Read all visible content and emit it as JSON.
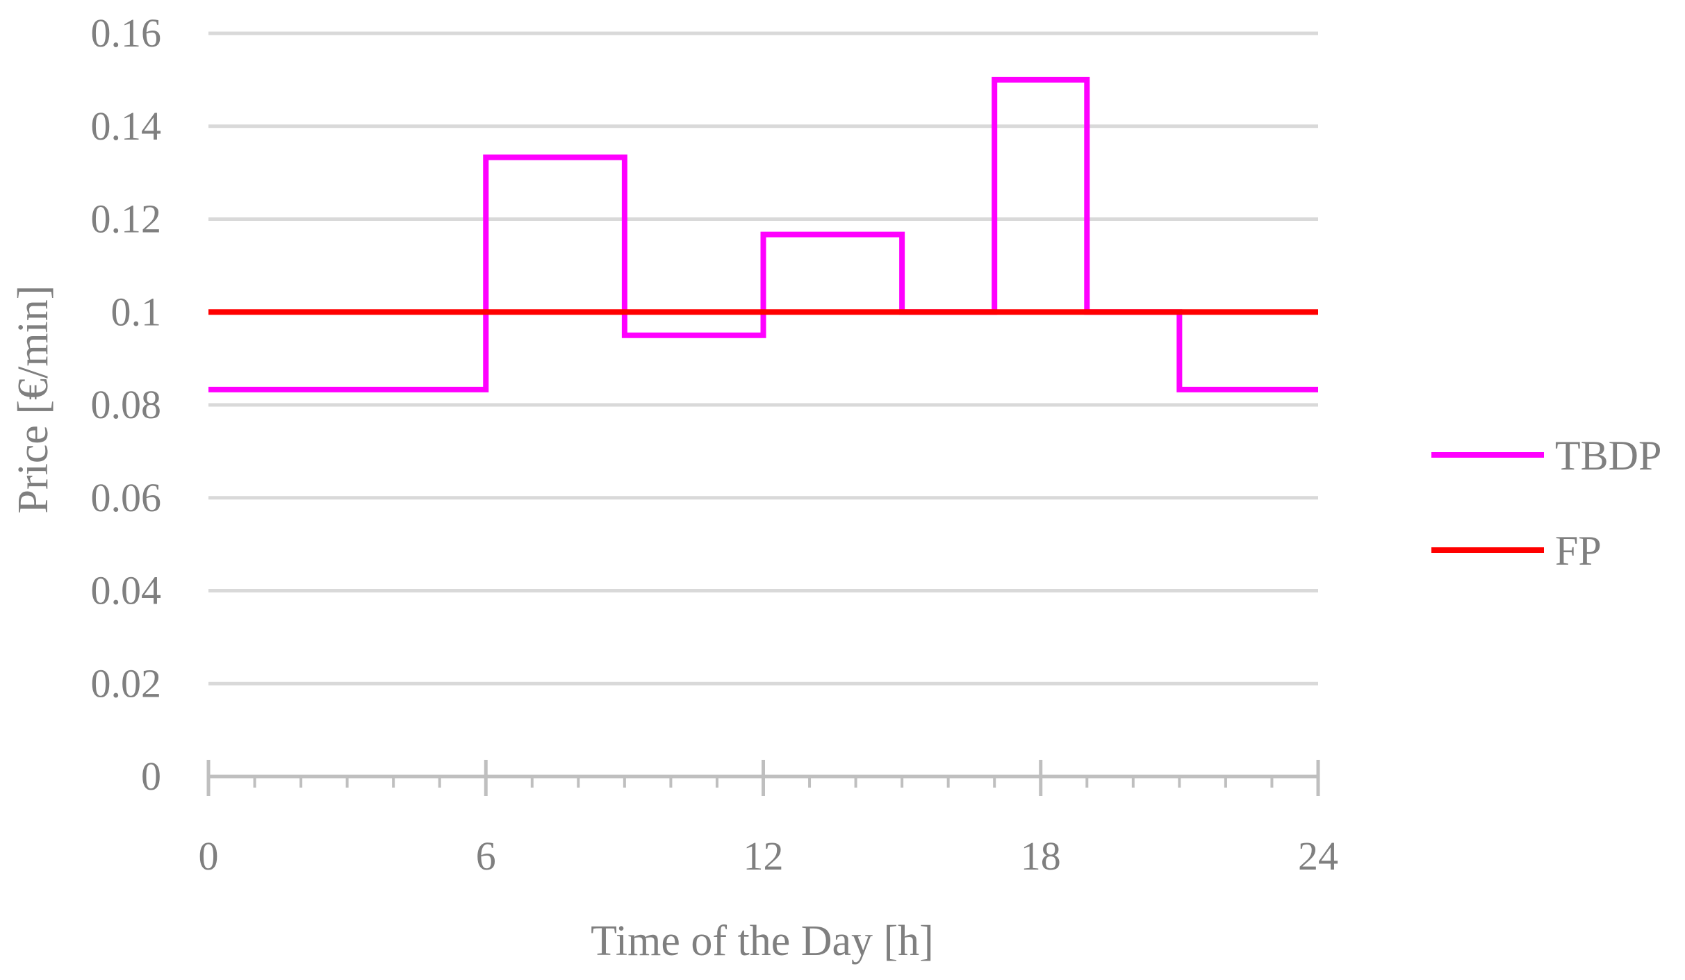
{
  "chart_data": {
    "type": "line",
    "step": true,
    "xlabel": "Time of the Day [h]",
    "ylabel": "Price [€/min]",
    "xlim": [
      0,
      24
    ],
    "ylim": [
      0,
      0.16
    ],
    "x_ticks": [
      "0",
      "6",
      "12",
      "18",
      "24"
    ],
    "x_minor_step": 1,
    "y_ticks": [
      "0",
      "0.02",
      "0.04",
      "0.06",
      "0.08",
      "0.1",
      "0.12",
      "0.14",
      "0.16"
    ],
    "grid": true,
    "legend_position": "right",
    "series": [
      {
        "name": "TBDP",
        "color": "#ff00ff",
        "segments": [
          {
            "x0": 0,
            "x1": 6,
            "y": 0.0833
          },
          {
            "x0": 6,
            "x1": 9,
            "y": 0.1333
          },
          {
            "x0": 9,
            "x1": 12,
            "y": 0.095
          },
          {
            "x0": 12,
            "x1": 15,
            "y": 0.1167
          },
          {
            "x0": 15,
            "x1": 17,
            "y": 0.1
          },
          {
            "x0": 17,
            "x1": 19,
            "y": 0.15
          },
          {
            "x0": 19,
            "x1": 21,
            "y": 0.1
          },
          {
            "x0": 21,
            "x1": 24,
            "y": 0.0833
          }
        ]
      },
      {
        "name": "FP",
        "color": "#ff0000",
        "segments": [
          {
            "x0": 0,
            "x1": 24,
            "y": 0.1
          }
        ]
      }
    ]
  }
}
